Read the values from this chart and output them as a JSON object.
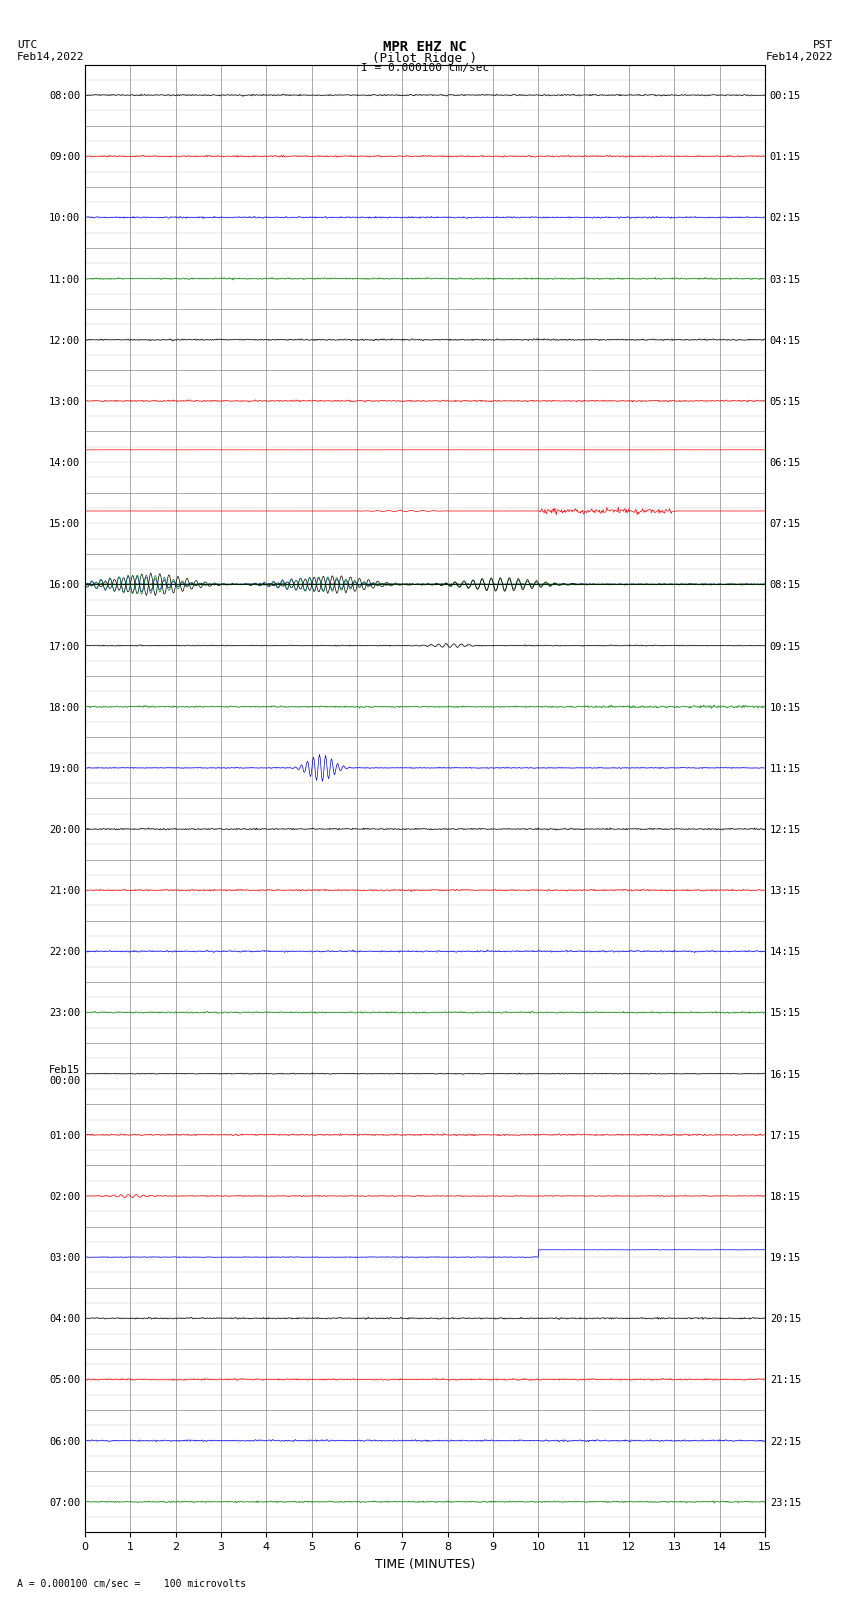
{
  "title_line1": "MPR EHZ NC",
  "title_line2": "(Pilot Ridge )",
  "title_line3": "I = 0.000100 cm/sec",
  "left_top_label1": "UTC",
  "left_top_label2": "Feb14,2022",
  "right_top_label1": "PST",
  "right_top_label2": "Feb14,2022",
  "bottom_label": "TIME (MINUTES)",
  "bottom_footnote": "= 0.000100 cm/sec =    100 microvolts",
  "utc_times": [
    "08:00",
    "09:00",
    "10:00",
    "11:00",
    "12:00",
    "13:00",
    "14:00",
    "15:00",
    "16:00",
    "17:00",
    "18:00",
    "19:00",
    "20:00",
    "21:00",
    "22:00",
    "23:00",
    "Feb15\n00:00",
    "01:00",
    "02:00",
    "03:00",
    "04:00",
    "05:00",
    "06:00",
    "07:00"
  ],
  "pst_times": [
    "00:15",
    "01:15",
    "02:15",
    "03:15",
    "04:15",
    "05:15",
    "06:15",
    "07:15",
    "08:15",
    "09:15",
    "10:15",
    "11:15",
    "12:15",
    "13:15",
    "14:15",
    "15:15",
    "16:15",
    "17:15",
    "18:15",
    "19:15",
    "20:15",
    "21:15",
    "22:15",
    "23:15"
  ],
  "num_rows": 24,
  "minutes_per_row": 15,
  "background_color": "#ffffff",
  "grid_color": "#888888",
  "trace_colors": [
    "#000000",
    "#ff0000",
    "#0000ff",
    "#008800"
  ],
  "figsize": [
    8.5,
    16.13
  ],
  "dpi": 100
}
